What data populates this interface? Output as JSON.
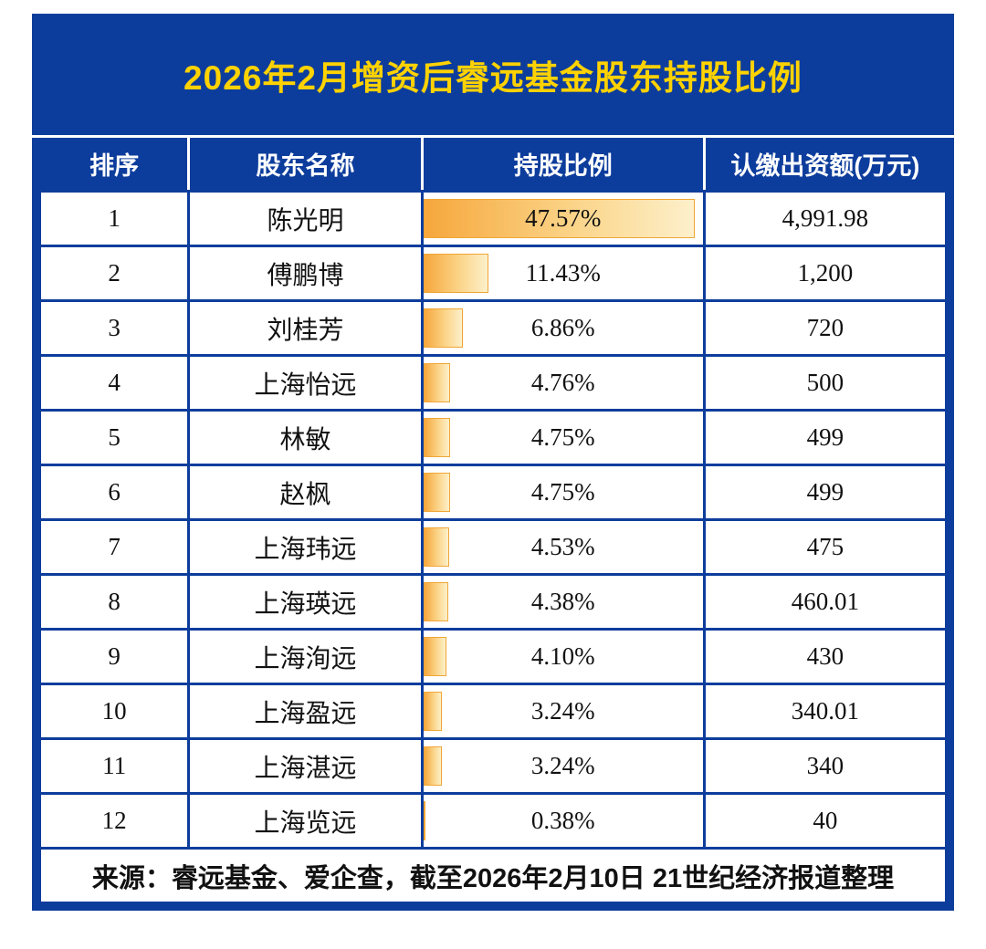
{
  "title": "2026年2月增资后睿远基金股东持股比例",
  "columns": [
    "排序",
    "股东名称",
    "持股比例",
    "认缴出资额(万元)"
  ],
  "rows": [
    {
      "rank": "1",
      "name": "陈光明",
      "pct": "47.57%",
      "pct_value": 47.57,
      "amount": "4,991.98"
    },
    {
      "rank": "2",
      "name": "傅鹏博",
      "pct": "11.43%",
      "pct_value": 11.43,
      "amount": "1,200"
    },
    {
      "rank": "3",
      "name": "刘桂芳",
      "pct": "6.86%",
      "pct_value": 6.86,
      "amount": "720"
    },
    {
      "rank": "4",
      "name": "上海怡远",
      "pct": "4.76%",
      "pct_value": 4.76,
      "amount": "500"
    },
    {
      "rank": "5",
      "name": "林敏",
      "pct": "4.75%",
      "pct_value": 4.75,
      "amount": "499"
    },
    {
      "rank": "6",
      "name": "赵枫",
      "pct": "4.75%",
      "pct_value": 4.75,
      "amount": "499"
    },
    {
      "rank": "7",
      "name": "上海玮远",
      "pct": "4.53%",
      "pct_value": 4.53,
      "amount": "475"
    },
    {
      "rank": "8",
      "name": "上海瑛远",
      "pct": "4.38%",
      "pct_value": 4.38,
      "amount": "460.01"
    },
    {
      "rank": "9",
      "name": "上海洵远",
      "pct": "4.10%",
      "pct_value": 4.1,
      "amount": "430"
    },
    {
      "rank": "10",
      "name": "上海盈远",
      "pct": "3.24%",
      "pct_value": 3.24,
      "amount": "340.01"
    },
    {
      "rank": "11",
      "name": "上海湛远",
      "pct": "3.24%",
      "pct_value": 3.24,
      "amount": "340"
    },
    {
      "rank": "12",
      "name": "上海览远",
      "pct": "0.38%",
      "pct_value": 0.38,
      "amount": "40"
    }
  ],
  "footer": "来源：睿远基金、爱企查，截至2026年2月10日 21世纪经济报道整理",
  "colors": {
    "navy": "#0d3d9c",
    "title_yellow": "#ffd200",
    "bar_start": "#f6a73c",
    "bar_end": "#fdf0cb",
    "text": "#111111"
  },
  "chart_data": {
    "type": "bar",
    "orientation": "horizontal",
    "title": "2026年2月增资后睿远基金股东持股比例",
    "categories": [
      "陈光明",
      "傅鹏博",
      "刘桂芳",
      "上海怡远",
      "林敏",
      "赵枫",
      "上海玮远",
      "上海瑛远",
      "上海洵远",
      "上海盈远",
      "上海湛远",
      "上海览远"
    ],
    "series": [
      {
        "name": "持股比例(%)",
        "values": [
          47.57,
          11.43,
          6.86,
          4.76,
          4.75,
          4.75,
          4.53,
          4.38,
          4.1,
          3.24,
          3.24,
          0.38
        ]
      },
      {
        "name": "认缴出资额(万元)",
        "values": [
          4991.98,
          1200,
          720,
          500,
          499,
          499,
          475,
          460.01,
          430,
          340.01,
          340,
          40
        ]
      }
    ],
    "xlim": [
      0,
      47.57
    ],
    "grid": false,
    "legend": false,
    "annotation": "来源：睿远基金、爱企查，截至2026年2月10日 21世纪经济报道整理"
  }
}
